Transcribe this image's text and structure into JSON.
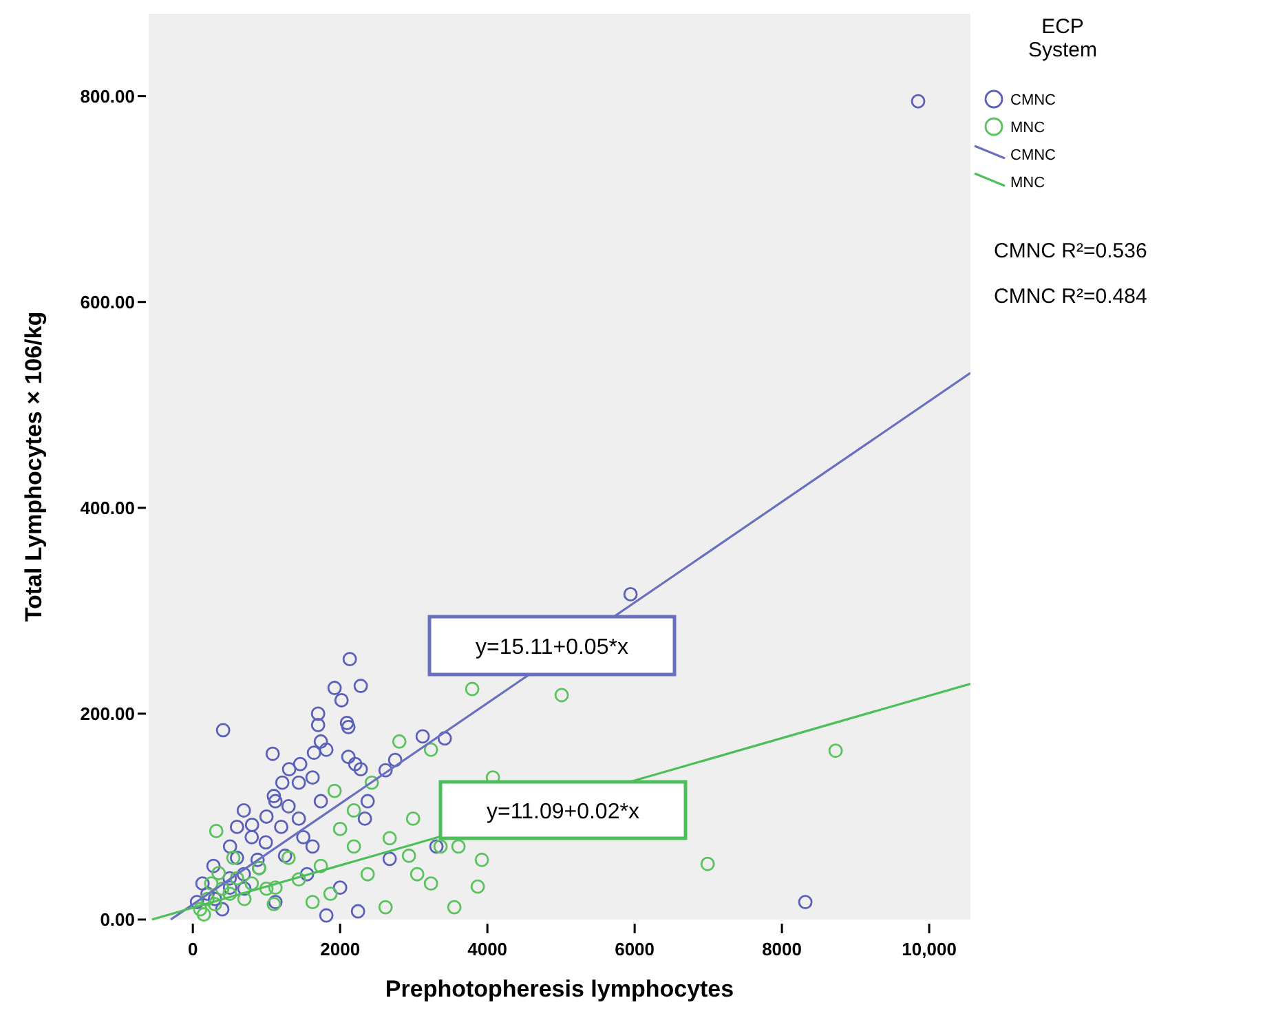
{
  "chart_data": {
    "type": "scatter",
    "xlabel": "Prephotopheresis lymphocytes",
    "ylabel": "Total Lymphocytes × 106/kg",
    "legend_title": "ECP System",
    "legend": "top right",
    "grid": false,
    "xlim": [
      -600,
      10560
    ],
    "ylim": [
      0,
      880
    ],
    "xticks": [
      0,
      2000,
      4000,
      6000,
      8000,
      {
        "value": 10000,
        "label": "10,000"
      }
    ],
    "yticks": [
      {
        "value": 0,
        "label": "0.00"
      },
      {
        "value": 200,
        "label": "200.00"
      },
      {
        "value": 400,
        "label": "400.00"
      },
      {
        "value": 600,
        "label": "600.00"
      },
      {
        "value": 800,
        "label": "800.00"
      }
    ],
    "series": [
      {
        "name": "CMNC",
        "color": "#5b61b8",
        "x": [
          2131,
          2280,
          1925,
          2019,
          411,
          1701,
          1701,
          2093,
          2112,
          1084,
          1738,
          1645,
          1813,
          1308,
          1458,
          1215,
          1439,
          1626,
          2112,
          2206,
          2280,
          3121,
          3421,
          2748,
          2617,
          2374,
          2336,
          1738,
          692,
          804,
          1121,
          1439,
          991,
          505,
          280,
          692,
          879,
          1252,
          1626,
          1551,
          2673,
          3308,
          2000,
          2243,
          1813,
          1121,
          505,
          131,
          56,
          9850,
          5944,
          8318,
          300,
          500,
          600,
          800,
          1000,
          400,
          700,
          900,
          1200,
          1100,
          1300,
          600,
          1500,
          200
        ],
        "values": [
          253,
          227,
          225,
          213,
          184,
          200,
          189,
          191,
          187,
          161,
          173,
          162,
          165,
          146,
          151,
          133,
          133,
          138,
          158,
          151,
          146,
          178,
          176,
          155,
          145,
          115,
          98,
          115,
          106,
          92,
          115,
          98,
          75,
          71,
          52,
          44,
          58,
          62,
          71,
          44,
          59,
          71,
          31,
          8,
          4,
          17,
          31,
          35,
          17,
          795,
          316,
          17,
          20,
          40,
          60,
          80,
          100,
          10,
          30,
          50,
          90,
          120,
          110,
          90,
          80,
          25
        ]
      },
      {
        "name": "MNC",
        "color": "#5cc25e",
        "x": [
          3794,
          5009,
          2804,
          3234,
          4075,
          2430,
          1925,
          2187,
          2000,
          318,
          2991,
          2935,
          3047,
          3234,
          3364,
          3607,
          3925,
          3869,
          2617,
          3551,
          2374,
          1738,
          1439,
          1869,
          1121,
          1626,
          2187,
          2673,
          8729,
          6991,
          100,
          200,
          300,
          400,
          500,
          600,
          700,
          800,
          900,
          1000,
          150,
          350,
          550,
          250,
          1100,
          1300
        ],
        "values": [
          224,
          218,
          173,
          165,
          138,
          133,
          125,
          106,
          88,
          86,
          98,
          62,
          44,
          35,
          71,
          71,
          58,
          32,
          12,
          12,
          44,
          52,
          39,
          25,
          31,
          17,
          71,
          79,
          164,
          54,
          10,
          20,
          15,
          30,
          25,
          40,
          20,
          35,
          50,
          30,
          5,
          45,
          60,
          35,
          15,
          60
        ]
      },
      {
        "name": "CMNC",
        "type": "line",
        "color": "#6a70c0",
        "x": [
          -300,
          10560
        ],
        "values": [
          0,
          531
        ]
      },
      {
        "name": "MNC",
        "type": "line",
        "color": "#4cbf5a",
        "x": [
          -555,
          10560
        ],
        "values": [
          0,
          229
        ]
      }
    ],
    "annotations": [
      "CMNC R²=0.536",
      "CMNC R²=0.484",
      "y=15.11+0.05*x",
      "y=11.09+0.02*x"
    ]
  }
}
